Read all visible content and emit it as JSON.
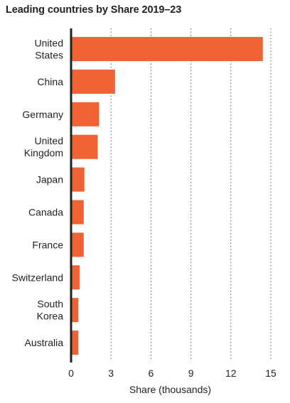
{
  "chart_data": {
    "type": "bar",
    "orientation": "horizontal",
    "title": "Leading countries by Share 2019–23",
    "xlabel": "Share (thousands)",
    "ylabel": "",
    "categories": [
      [
        "United",
        "States"
      ],
      [
        "China"
      ],
      [
        "Germany"
      ],
      [
        "United",
        "Kingdom"
      ],
      [
        "Japan"
      ],
      [
        "Canada"
      ],
      [
        "France"
      ],
      [
        "Switzerland"
      ],
      [
        "South",
        "Korea"
      ],
      [
        "Australia"
      ]
    ],
    "values": [
      14.4,
      3.3,
      2.1,
      2.0,
      1.0,
      0.95,
      0.95,
      0.65,
      0.55,
      0.55
    ],
    "xlim": [
      0,
      15
    ],
    "xticks": [
      0,
      3,
      6,
      9,
      12,
      15
    ],
    "grid": "vertical-dotted",
    "bar_color": "#ef6236",
    "axis_color": "#231f20",
    "grid_color": "#555555"
  }
}
